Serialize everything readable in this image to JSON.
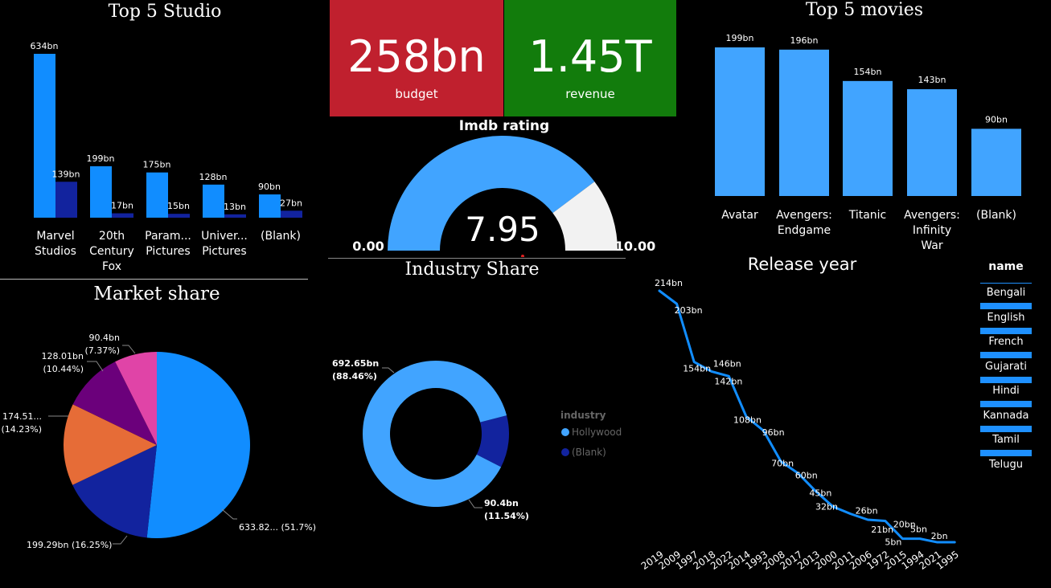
{
  "kpis": {
    "budget": {
      "value": "258bn",
      "label": "budget",
      "color": "#c0202e"
    },
    "revenue": {
      "value": "1.45T",
      "label": "revenue",
      "color": "#127c0c"
    }
  },
  "chart_data": [
    {
      "type": "bar",
      "title": "Top 5 Studio",
      "categories": [
        "Marvel Studios",
        "20th Century Fox",
        "Param... Pictures",
        "Univer... Pictures",
        "(Blank)"
      ],
      "series": [
        {
          "values": [
            634,
            199,
            175,
            128,
            90
          ],
          "labels": [
            "634bn",
            "199bn",
            "175bn",
            "128bn",
            "90bn"
          ],
          "color": "#118dff"
        },
        {
          "values": [
            139,
            17,
            15,
            13,
            27
          ],
          "labels": [
            "139bn",
            "17bn",
            "15bn",
            "13bn",
            "27bn"
          ],
          "color": "#12239e"
        }
      ],
      "unit": "bn"
    },
    {
      "type": "gauge",
      "title": "Imdb rating",
      "value": 7.95,
      "value_label": "7.95",
      "min": 0,
      "max": 10,
      "min_label": "0.00",
      "max_label": "10.00",
      "fill_color": "#41a4ff",
      "track_color": "#f2f2f2"
    },
    {
      "type": "bar",
      "title": "Top 5 movies",
      "categories": [
        "Avatar",
        "Avengers: Endgame",
        "Titanic",
        "Avengers: Infinity War",
        "(Blank)"
      ],
      "category_lines": [
        [
          "Avatar"
        ],
        [
          "Avengers:",
          "Endgame"
        ],
        [
          "Titanic"
        ],
        [
          "Avengers:",
          "Infinity",
          "War"
        ],
        [
          "(Blank)"
        ]
      ],
      "values": [
        199,
        196,
        154,
        143,
        90
      ],
      "labels": [
        "199bn",
        "196bn",
        "154bn",
        "143bn",
        "90bn"
      ],
      "color": "#41a4ff",
      "unit": "bn"
    },
    {
      "type": "pie",
      "title": "Market share",
      "slices": [
        {
          "value": 633.82,
          "percent": 51.7,
          "label": "633.82... (51.7%)",
          "color": "#118dff"
        },
        {
          "value": 199.29,
          "percent": 16.25,
          "label": "199.29bn (16.25%)",
          "color": "#12239e"
        },
        {
          "value": 174.51,
          "percent": 14.23,
          "label1": "174.51...",
          "label2": "(14.23%)",
          "color": "#e66c37"
        },
        {
          "value": 128.01,
          "percent": 10.44,
          "label1": "128.01bn",
          "label2": "(10.44%)",
          "color": "#6b007b"
        },
        {
          "value": 90.4,
          "percent": 7.37,
          "label1": "90.4bn",
          "label2": "(7.37%)",
          "color": "#e044a7"
        }
      ]
    },
    {
      "type": "donut",
      "title": "Industry Share",
      "slices": [
        {
          "name": "Hollywood",
          "value": 692.65,
          "percent": 88.46,
          "label1": "692.65bn",
          "label2": "(88.46%)",
          "color": "#41a4ff"
        },
        {
          "name": "(Blank)",
          "value": 90.4,
          "percent": 11.54,
          "label1": "90.4bn",
          "label2": "(11.54%)",
          "color": "#12239e"
        }
      ],
      "legend_title": "industry"
    },
    {
      "type": "line",
      "title": "Release year",
      "x": [
        "2019",
        "2009",
        "1997",
        "2018",
        "2022",
        "2014",
        "1993",
        "2008",
        "2017",
        "2013",
        "2000",
        "2011",
        "2006",
        "1972",
        "2015",
        "1994",
        "2021",
        "1995"
      ],
      "values": [
        214,
        203,
        154,
        146,
        142,
        108,
        96,
        70,
        60,
        45,
        32,
        26,
        21,
        20,
        5,
        5,
        2,
        2
      ],
      "labels": [
        "214bn",
        "203bn",
        "154bn",
        "146bn",
        "142bn",
        "108bn",
        "96bn",
        "70bn",
        "60bn",
        "45bn",
        "32bn",
        "26bn",
        "21bn",
        "20bn",
        "5bn",
        "5bn",
        "2bn",
        ""
      ],
      "color": "#118dff"
    }
  ],
  "slicer": {
    "title": "name",
    "items": [
      "Bengali",
      "English",
      "French",
      "Gujarati",
      "Hindi",
      "Kannada",
      "Tamil",
      "Telugu"
    ]
  }
}
